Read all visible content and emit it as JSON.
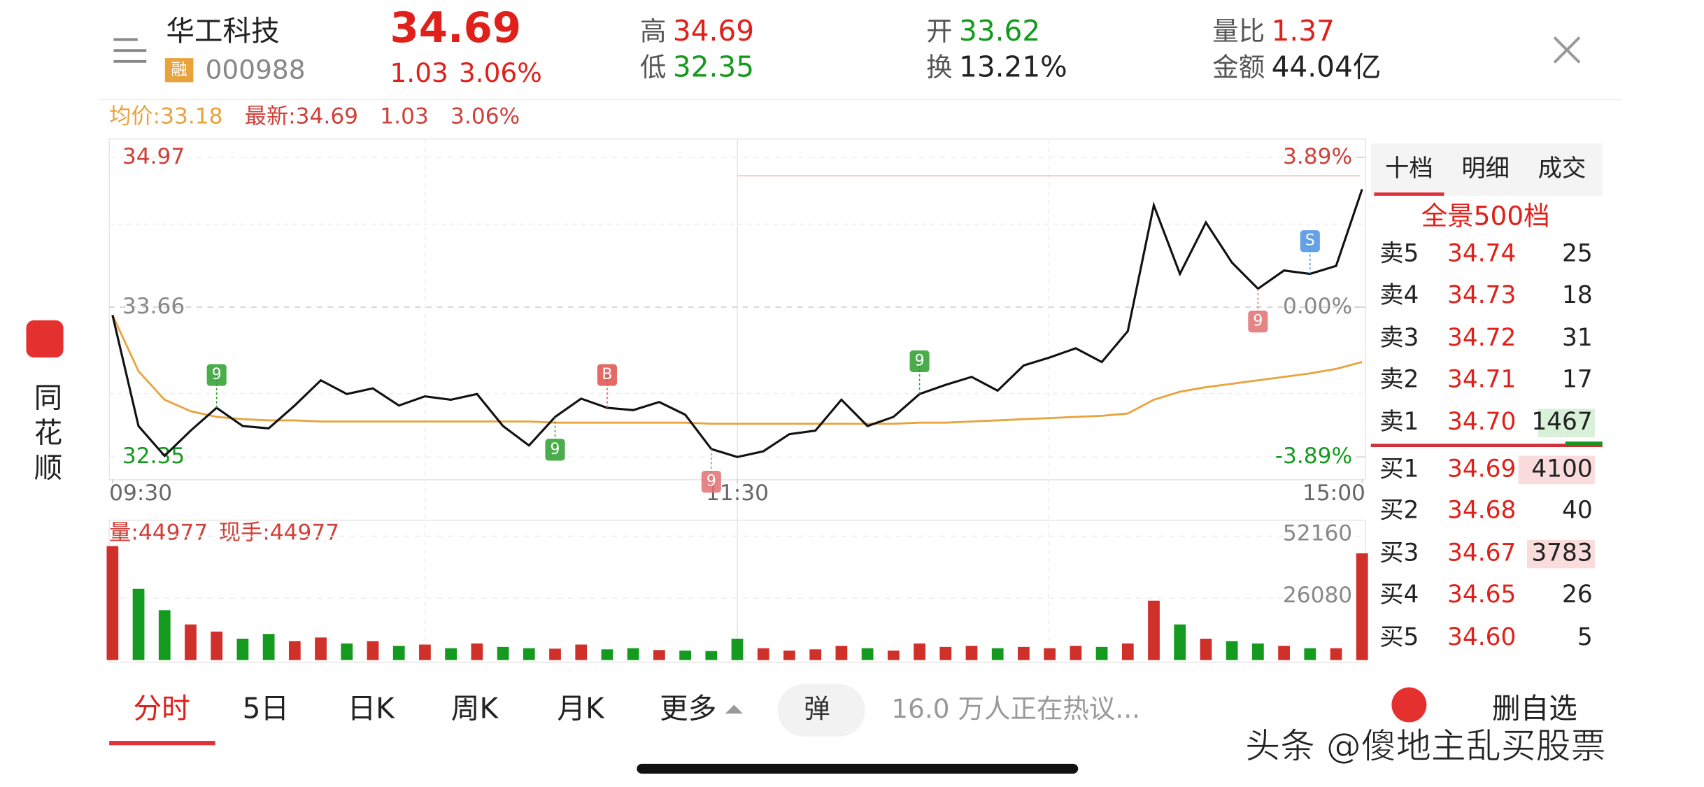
{
  "header": {
    "name": "华工科技",
    "tag": "融",
    "code": "000988",
    "price": "34.69",
    "change": "1.03",
    "change_pct": "3.06%",
    "stats": [
      {
        "label": "高",
        "value": "34.69",
        "color": "#e0201a"
      },
      {
        "label": "低",
        "value": "32.35",
        "color": "#149a1e"
      },
      {
        "label": "开",
        "value": "33.62",
        "color": "#149a1e"
      },
      {
        "label": "换",
        "value": "13.21%",
        "color": "#222222"
      },
      {
        "label": "量比",
        "value": "1.37",
        "color": "#e0201a"
      },
      {
        "label": "金额",
        "value": "44.04亿",
        "color": "#222222"
      }
    ]
  },
  "sidebar": {
    "app": "同花顺"
  },
  "chart_data": [
    {
      "type": "line",
      "info": [
        {
          "text": "均价:33.18",
          "color": "#e8a33d"
        },
        {
          "text": "最新:34.69",
          "color": "#d0403a"
        },
        {
          "text": "1.03",
          "color": "#d0403a"
        },
        {
          "text": "3.06%",
          "color": "#d0403a"
        }
      ],
      "x": [
        0,
        5,
        10,
        15,
        20,
        25,
        30,
        35,
        40,
        45,
        50,
        55,
        60,
        65,
        70,
        75,
        80,
        85,
        90,
        95,
        100,
        105,
        110,
        115,
        120,
        125,
        130,
        135,
        140,
        145,
        150,
        155,
        160,
        165,
        170,
        175,
        180,
        185,
        190,
        195,
        200,
        205,
        210,
        215,
        220,
        225,
        230,
        235,
        240
      ],
      "xlim": [
        0,
        240
      ],
      "xticks": [
        {
          "value": 0,
          "label": "09:30"
        },
        {
          "value": 120,
          "label": "11:30"
        },
        {
          "value": 240,
          "label": "15:00"
        }
      ],
      "ylim": [
        32.16,
        35.12
      ],
      "yticks": [
        34.97,
        33.66,
        32.35
      ],
      "pct_ticks": [
        {
          "value": 34.97,
          "label": "3.89%"
        },
        {
          "value": 33.66,
          "label": "0.00%"
        },
        {
          "value": 32.35,
          "label": "-3.89%"
        }
      ],
      "series": [
        {
          "name": "最新",
          "color": "#111111",
          "values": [
            33.59,
            32.62,
            32.36,
            32.58,
            32.78,
            32.62,
            32.6,
            32.8,
            33.02,
            32.9,
            32.95,
            32.8,
            32.88,
            32.85,
            32.9,
            32.62,
            32.45,
            32.7,
            32.86,
            32.78,
            32.76,
            32.83,
            32.72,
            32.42,
            32.35,
            32.4,
            32.55,
            32.58,
            32.85,
            32.62,
            32.7,
            32.9,
            32.98,
            33.05,
            32.93,
            33.15,
            33.22,
            33.3,
            33.18,
            33.45,
            34.55,
            33.95,
            34.4,
            34.05,
            33.82,
            33.98,
            33.95,
            34.02,
            34.69
          ]
        },
        {
          "name": "均价",
          "color": "#e8a33d",
          "values": [
            33.59,
            33.1,
            32.85,
            32.75,
            32.7,
            32.68,
            32.67,
            32.67,
            32.66,
            32.66,
            32.66,
            32.66,
            32.66,
            32.66,
            32.66,
            32.66,
            32.66,
            32.65,
            32.65,
            32.65,
            32.65,
            32.65,
            32.65,
            32.64,
            32.64,
            32.64,
            32.64,
            32.64,
            32.64,
            32.64,
            32.64,
            32.65,
            32.65,
            32.66,
            32.67,
            32.68,
            32.69,
            32.7,
            32.71,
            32.73,
            32.85,
            32.92,
            32.96,
            32.99,
            33.02,
            33.05,
            33.08,
            33.12,
            33.18
          ]
        }
      ],
      "markers": [
        {
          "label": "9",
          "index": 4,
          "color": "#2a9d2a"
        },
        {
          "label": "9",
          "index": 17,
          "color": "#2a9d2a"
        },
        {
          "label": "B",
          "index": 19,
          "color": "#e0504a"
        },
        {
          "label": "9",
          "index": 23,
          "color": "#e07070"
        },
        {
          "label": "9",
          "index": 31,
          "color": "#2a9d2a"
        },
        {
          "label": "9",
          "index": 44,
          "color": "#e07070"
        },
        {
          "label": "S",
          "index": 46,
          "color": "#4a90e2"
        }
      ]
    },
    {
      "type": "bar",
      "info": [
        {
          "text": "量:44977",
          "color": "#d0403a"
        },
        {
          "text": "现手:44977",
          "color": "#d0403a"
        }
      ],
      "x": [
        0,
        5,
        10,
        15,
        20,
        25,
        30,
        35,
        40,
        45,
        50,
        55,
        60,
        65,
        70,
        75,
        80,
        85,
        90,
        95,
        100,
        105,
        110,
        115,
        120,
        125,
        130,
        135,
        140,
        145,
        150,
        155,
        160,
        165,
        170,
        175,
        180,
        185,
        190,
        195,
        200,
        205,
        210,
        215,
        220,
        225,
        230,
        235,
        240
      ],
      "xlim": [
        0,
        240
      ],
      "ylim": [
        0,
        58000
      ],
      "yticks": [
        52160,
        26080
      ],
      "up_color": "#d0302a",
      "down_color": "#149a1e",
      "values": [
        48000,
        30000,
        21000,
        15000,
        12000,
        9000,
        11000,
        8000,
        9500,
        7000,
        8000,
        6000,
        6500,
        5000,
        7000,
        5500,
        5000,
        4800,
        6500,
        4500,
        5000,
        4200,
        4000,
        3800,
        9000,
        5000,
        4000,
        4500,
        6000,
        5000,
        4000,
        7000,
        5500,
        6000,
        5000,
        5500,
        5000,
        6000,
        5500,
        7000,
        25000,
        15000,
        9000,
        8000,
        7000,
        6000,
        5000,
        5000,
        44977
      ]
    }
  ],
  "order_book": {
    "tabs": [
      "十档",
      "明细",
      "成交"
    ],
    "title": "全景500档",
    "asks": [
      {
        "label": "卖5",
        "price": "34.74",
        "qty": "25"
      },
      {
        "label": "卖4",
        "price": "34.73",
        "qty": "18"
      },
      {
        "label": "卖3",
        "price": "34.72",
        "qty": "31"
      },
      {
        "label": "卖2",
        "price": "34.71",
        "qty": "17"
      },
      {
        "label": "卖1",
        "price": "34.70",
        "qty": "1467"
      }
    ],
    "bids": [
      {
        "label": "买1",
        "price": "34.69",
        "qty": "4100"
      },
      {
        "label": "买2",
        "price": "34.68",
        "qty": "40"
      },
      {
        "label": "买3",
        "price": "34.67",
        "qty": "3783"
      },
      {
        "label": "买4",
        "price": "34.65",
        "qty": "26"
      },
      {
        "label": "买5",
        "price": "34.60",
        "qty": "5"
      }
    ]
  },
  "footer": {
    "tabs": [
      "分时",
      "5日",
      "日K",
      "周K",
      "月K",
      "更多"
    ],
    "danmu": "弹",
    "discussion": "16.0 万人正在热议...",
    "action": "删自选"
  },
  "watermark": "头条 @傻地主乱买股票"
}
